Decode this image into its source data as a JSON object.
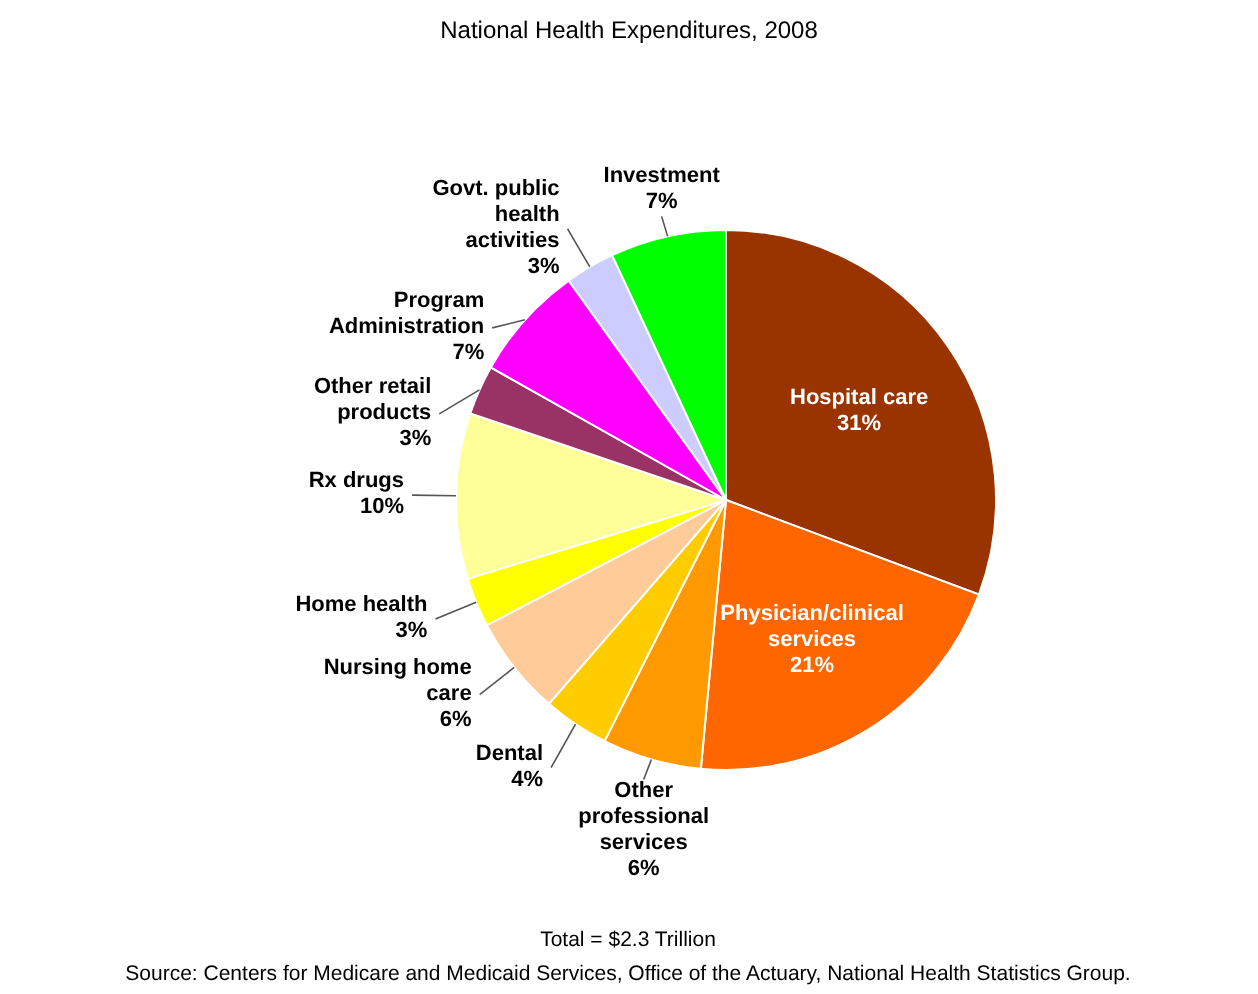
{
  "chart_data": {
    "type": "pie",
    "title": "National Health Expenditures, 2008",
    "categories": [
      "Hospital care",
      "Physician/clinical services",
      "Other professional services",
      "Dental",
      "Nursing home care",
      "Home health",
      "Rx drugs",
      "Other retail products",
      "Program Administration",
      "Govt. public health activities",
      "Investment"
    ],
    "values": [
      31,
      21,
      6,
      4,
      6,
      3,
      10,
      3,
      7,
      3,
      7
    ],
    "value_labels": [
      "31%",
      "21%",
      "6%",
      "4%",
      "6%",
      "3%",
      "10%",
      "3%",
      "7%",
      "3%",
      "7%"
    ],
    "colors": [
      "#993300",
      "#ff6600",
      "#ff9900",
      "#ffcc00",
      "#ffcc99",
      "#ffff00",
      "#ffff99",
      "#993366",
      "#ff00ff",
      "#ccccff",
      "#00ff00"
    ],
    "annotations": [
      "Total = $2.3 Trillion",
      "Source: Centers for Medicare and Medicaid Services, Office of the Actuary, National Health Statistics Group."
    ]
  }
}
